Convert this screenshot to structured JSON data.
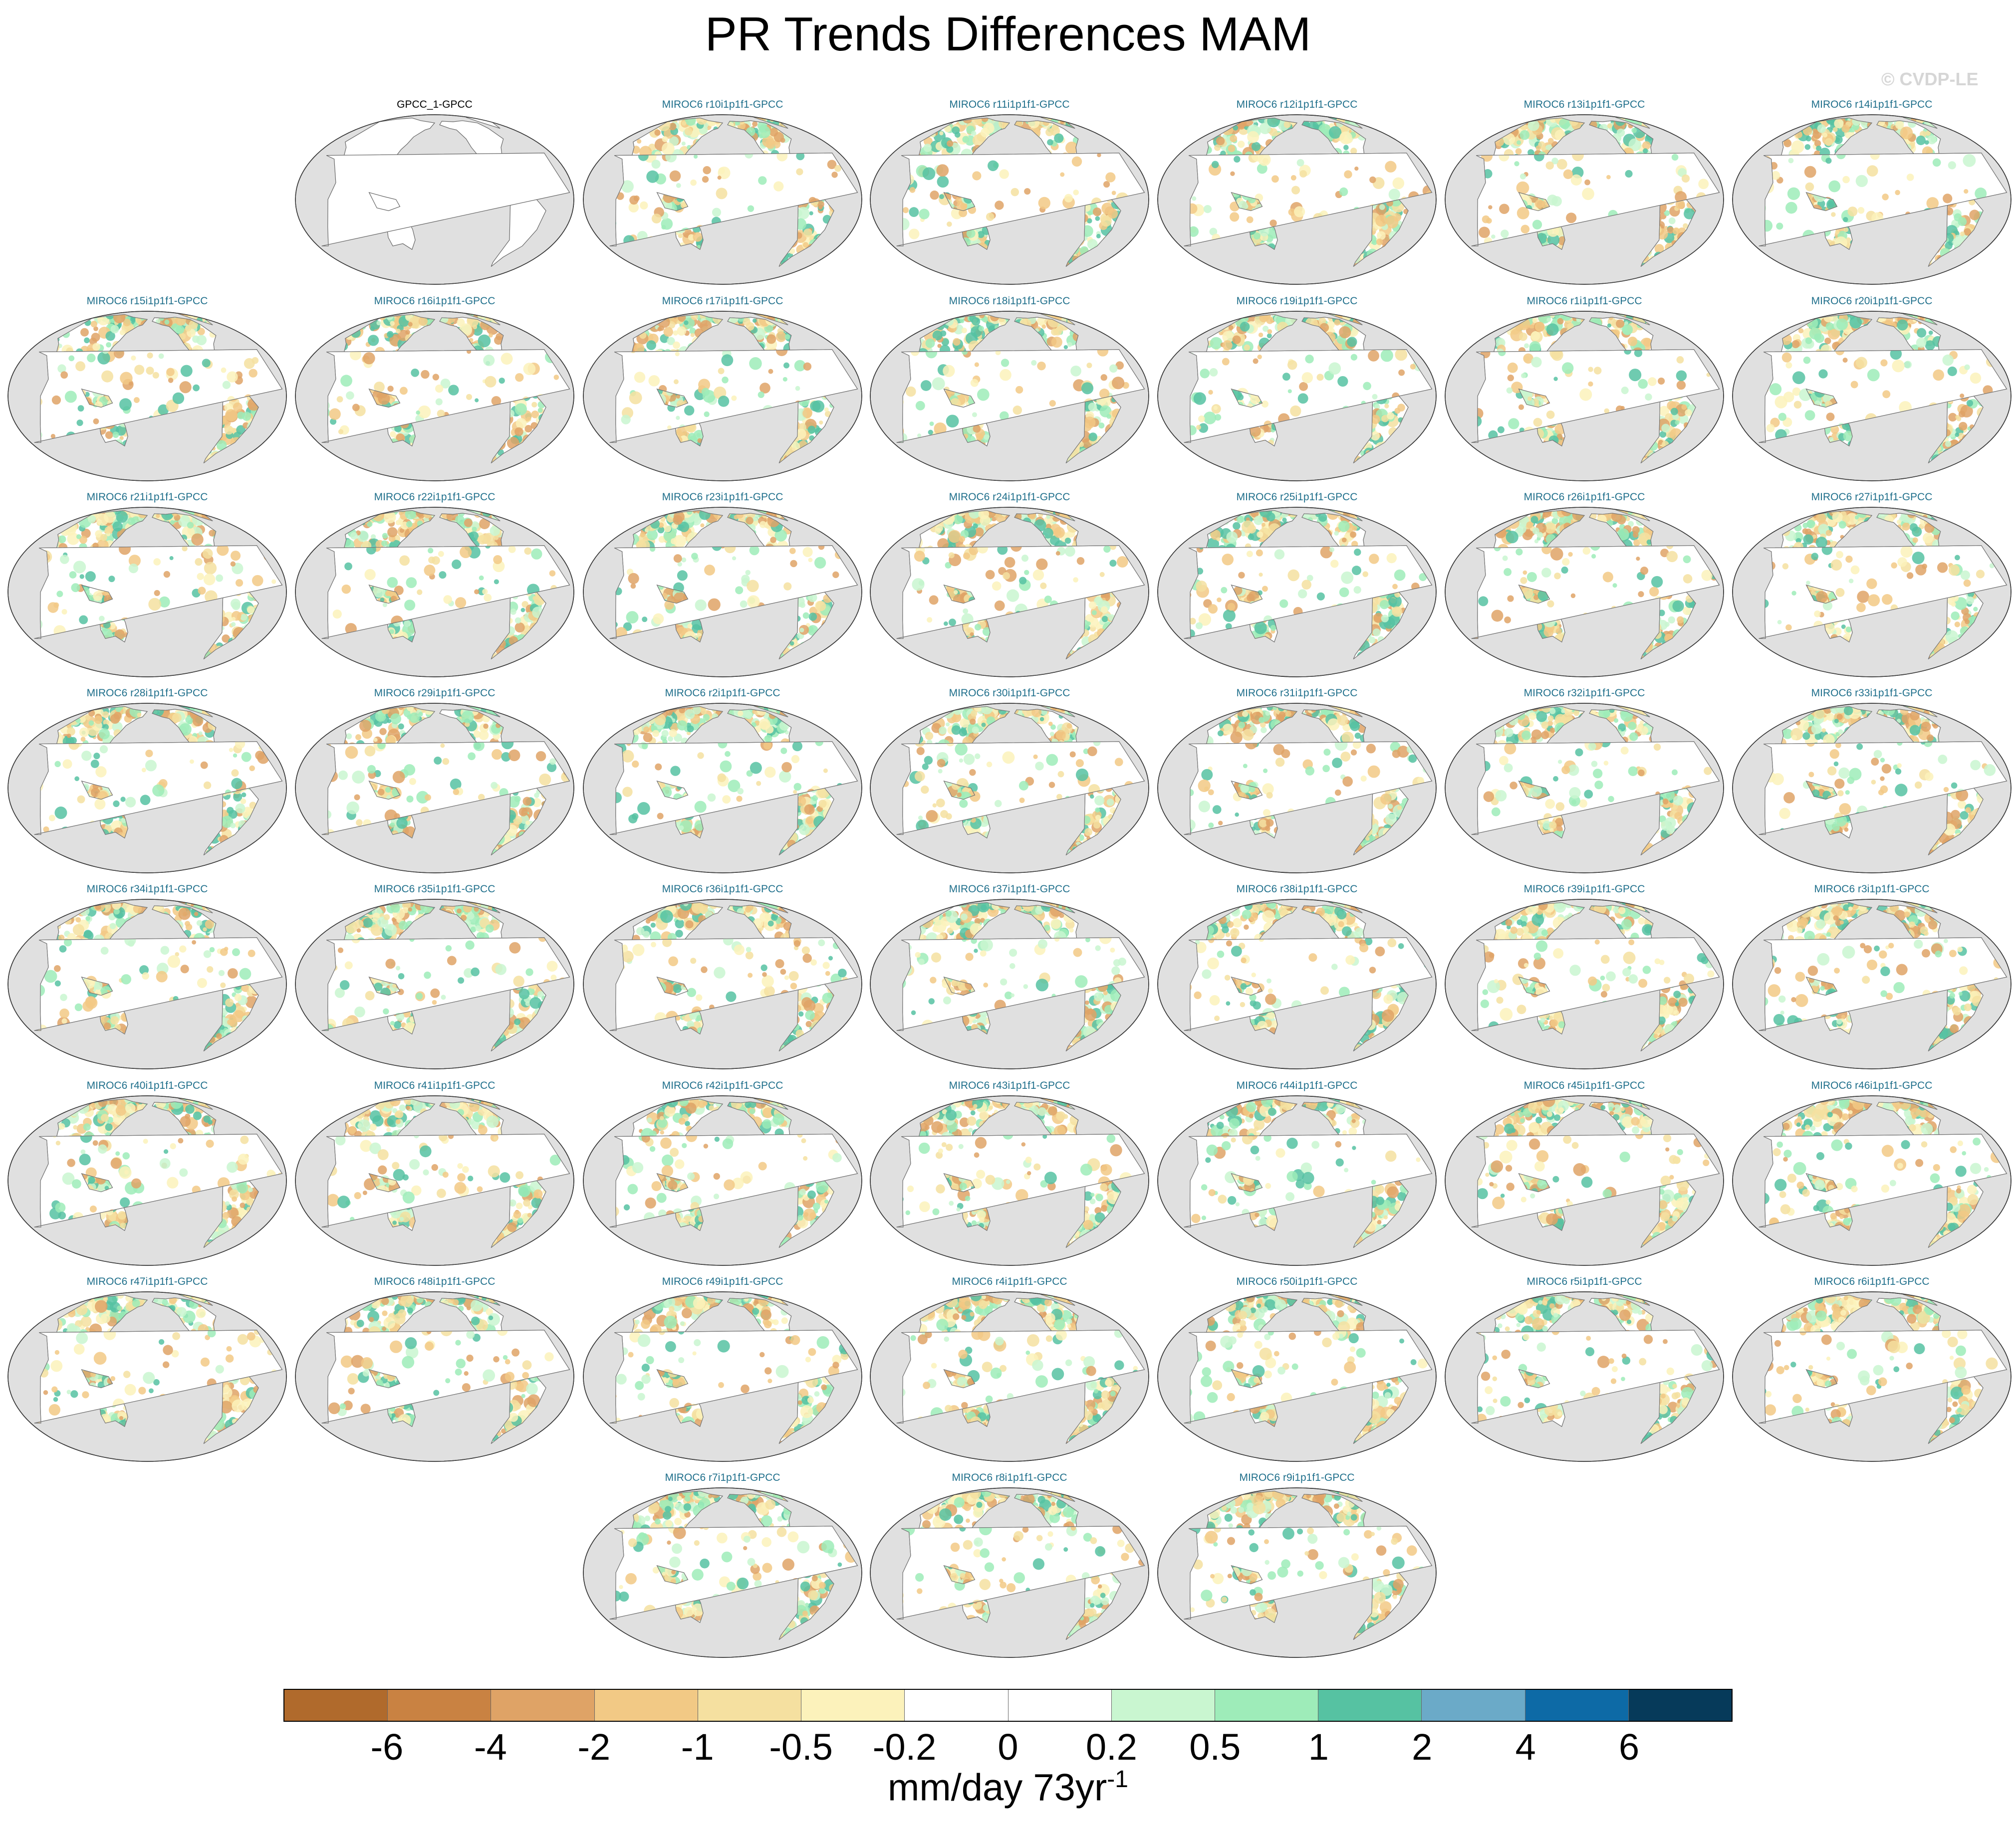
{
  "title": "PR Trends Differences MAM",
  "watermark": "© CVDP-LE",
  "colorbar": {
    "colors": [
      "#b06a2c",
      "#c98242",
      "#dfa366",
      "#f2c985",
      "#f5e0a0",
      "#fcf2bb",
      "#ffffff",
      "#ffffff",
      "#c9f6d0",
      "#9eecb9",
      "#56c2a2",
      "#6baac8",
      "#0d6aa6",
      "#063a5a"
    ],
    "tick_labels": [
      "-6",
      "-4",
      "-2",
      "-1",
      "-0.5",
      "-0.2",
      "0",
      "0.2",
      "0.5",
      "1",
      "2",
      "4",
      "6"
    ],
    "units": "mm/day 73yr",
    "units_exponent": "-1"
  },
  "panels": [
    {
      "label": "GPCC_1-GPCC",
      "observed": true
    },
    {
      "label": "MIROC6 r10i1p1f1-GPCC"
    },
    {
      "label": "MIROC6 r11i1p1f1-GPCC"
    },
    {
      "label": "MIROC6 r12i1p1f1-GPCC"
    },
    {
      "label": "MIROC6 r13i1p1f1-GPCC"
    },
    {
      "label": "MIROC6 r14i1p1f1-GPCC"
    },
    {
      "label": "MIROC6 r15i1p1f1-GPCC"
    },
    {
      "label": "MIROC6 r16i1p1f1-GPCC"
    },
    {
      "label": "MIROC6 r17i1p1f1-GPCC"
    },
    {
      "label": "MIROC6 r18i1p1f1-GPCC"
    },
    {
      "label": "MIROC6 r19i1p1f1-GPCC"
    },
    {
      "label": "MIROC6 r1i1p1f1-GPCC"
    },
    {
      "label": "MIROC6 r20i1p1f1-GPCC"
    },
    {
      "label": "MIROC6 r21i1p1f1-GPCC"
    },
    {
      "label": "MIROC6 r22i1p1f1-GPCC"
    },
    {
      "label": "MIROC6 r23i1p1f1-GPCC"
    },
    {
      "label": "MIROC6 r24i1p1f1-GPCC"
    },
    {
      "label": "MIROC6 r25i1p1f1-GPCC"
    },
    {
      "label": "MIROC6 r26i1p1f1-GPCC"
    },
    {
      "label": "MIROC6 r27i1p1f1-GPCC"
    },
    {
      "label": "MIROC6 r28i1p1f1-GPCC"
    },
    {
      "label": "MIROC6 r29i1p1f1-GPCC"
    },
    {
      "label": "MIROC6 r2i1p1f1-GPCC"
    },
    {
      "label": "MIROC6 r30i1p1f1-GPCC"
    },
    {
      "label": "MIROC6 r31i1p1f1-GPCC"
    },
    {
      "label": "MIROC6 r32i1p1f1-GPCC"
    },
    {
      "label": "MIROC6 r33i1p1f1-GPCC"
    },
    {
      "label": "MIROC6 r34i1p1f1-GPCC"
    },
    {
      "label": "MIROC6 r35i1p1f1-GPCC"
    },
    {
      "label": "MIROC6 r36i1p1f1-GPCC"
    },
    {
      "label": "MIROC6 r37i1p1f1-GPCC"
    },
    {
      "label": "MIROC6 r38i1p1f1-GPCC"
    },
    {
      "label": "MIROC6 r39i1p1f1-GPCC"
    },
    {
      "label": "MIROC6 r3i1p1f1-GPCC"
    },
    {
      "label": "MIROC6 r40i1p1f1-GPCC"
    },
    {
      "label": "MIROC6 r41i1p1f1-GPCC"
    },
    {
      "label": "MIROC6 r42i1p1f1-GPCC"
    },
    {
      "label": "MIROC6 r43i1p1f1-GPCC"
    },
    {
      "label": "MIROC6 r44i1p1f1-GPCC"
    },
    {
      "label": "MIROC6 r45i1p1f1-GPCC"
    },
    {
      "label": "MIROC6 r46i1p1f1-GPCC"
    },
    {
      "label": "MIROC6 r47i1p1f1-GPCC"
    },
    {
      "label": "MIROC6 r48i1p1f1-GPCC"
    },
    {
      "label": "MIROC6 r49i1p1f1-GPCC"
    },
    {
      "label": "MIROC6 r4i1p1f1-GPCC"
    },
    {
      "label": "MIROC6 r50i1p1f1-GPCC"
    },
    {
      "label": "MIROC6 r5i1p1f1-GPCC"
    },
    {
      "label": "MIROC6 r6i1p1f1-GPCC"
    },
    {
      "label": "MIROC6 r7i1p1f1-GPCC"
    },
    {
      "label": "MIROC6 r8i1p1f1-GPCC"
    },
    {
      "label": "MIROC6 r9i1p1f1-GPCC"
    }
  ]
}
